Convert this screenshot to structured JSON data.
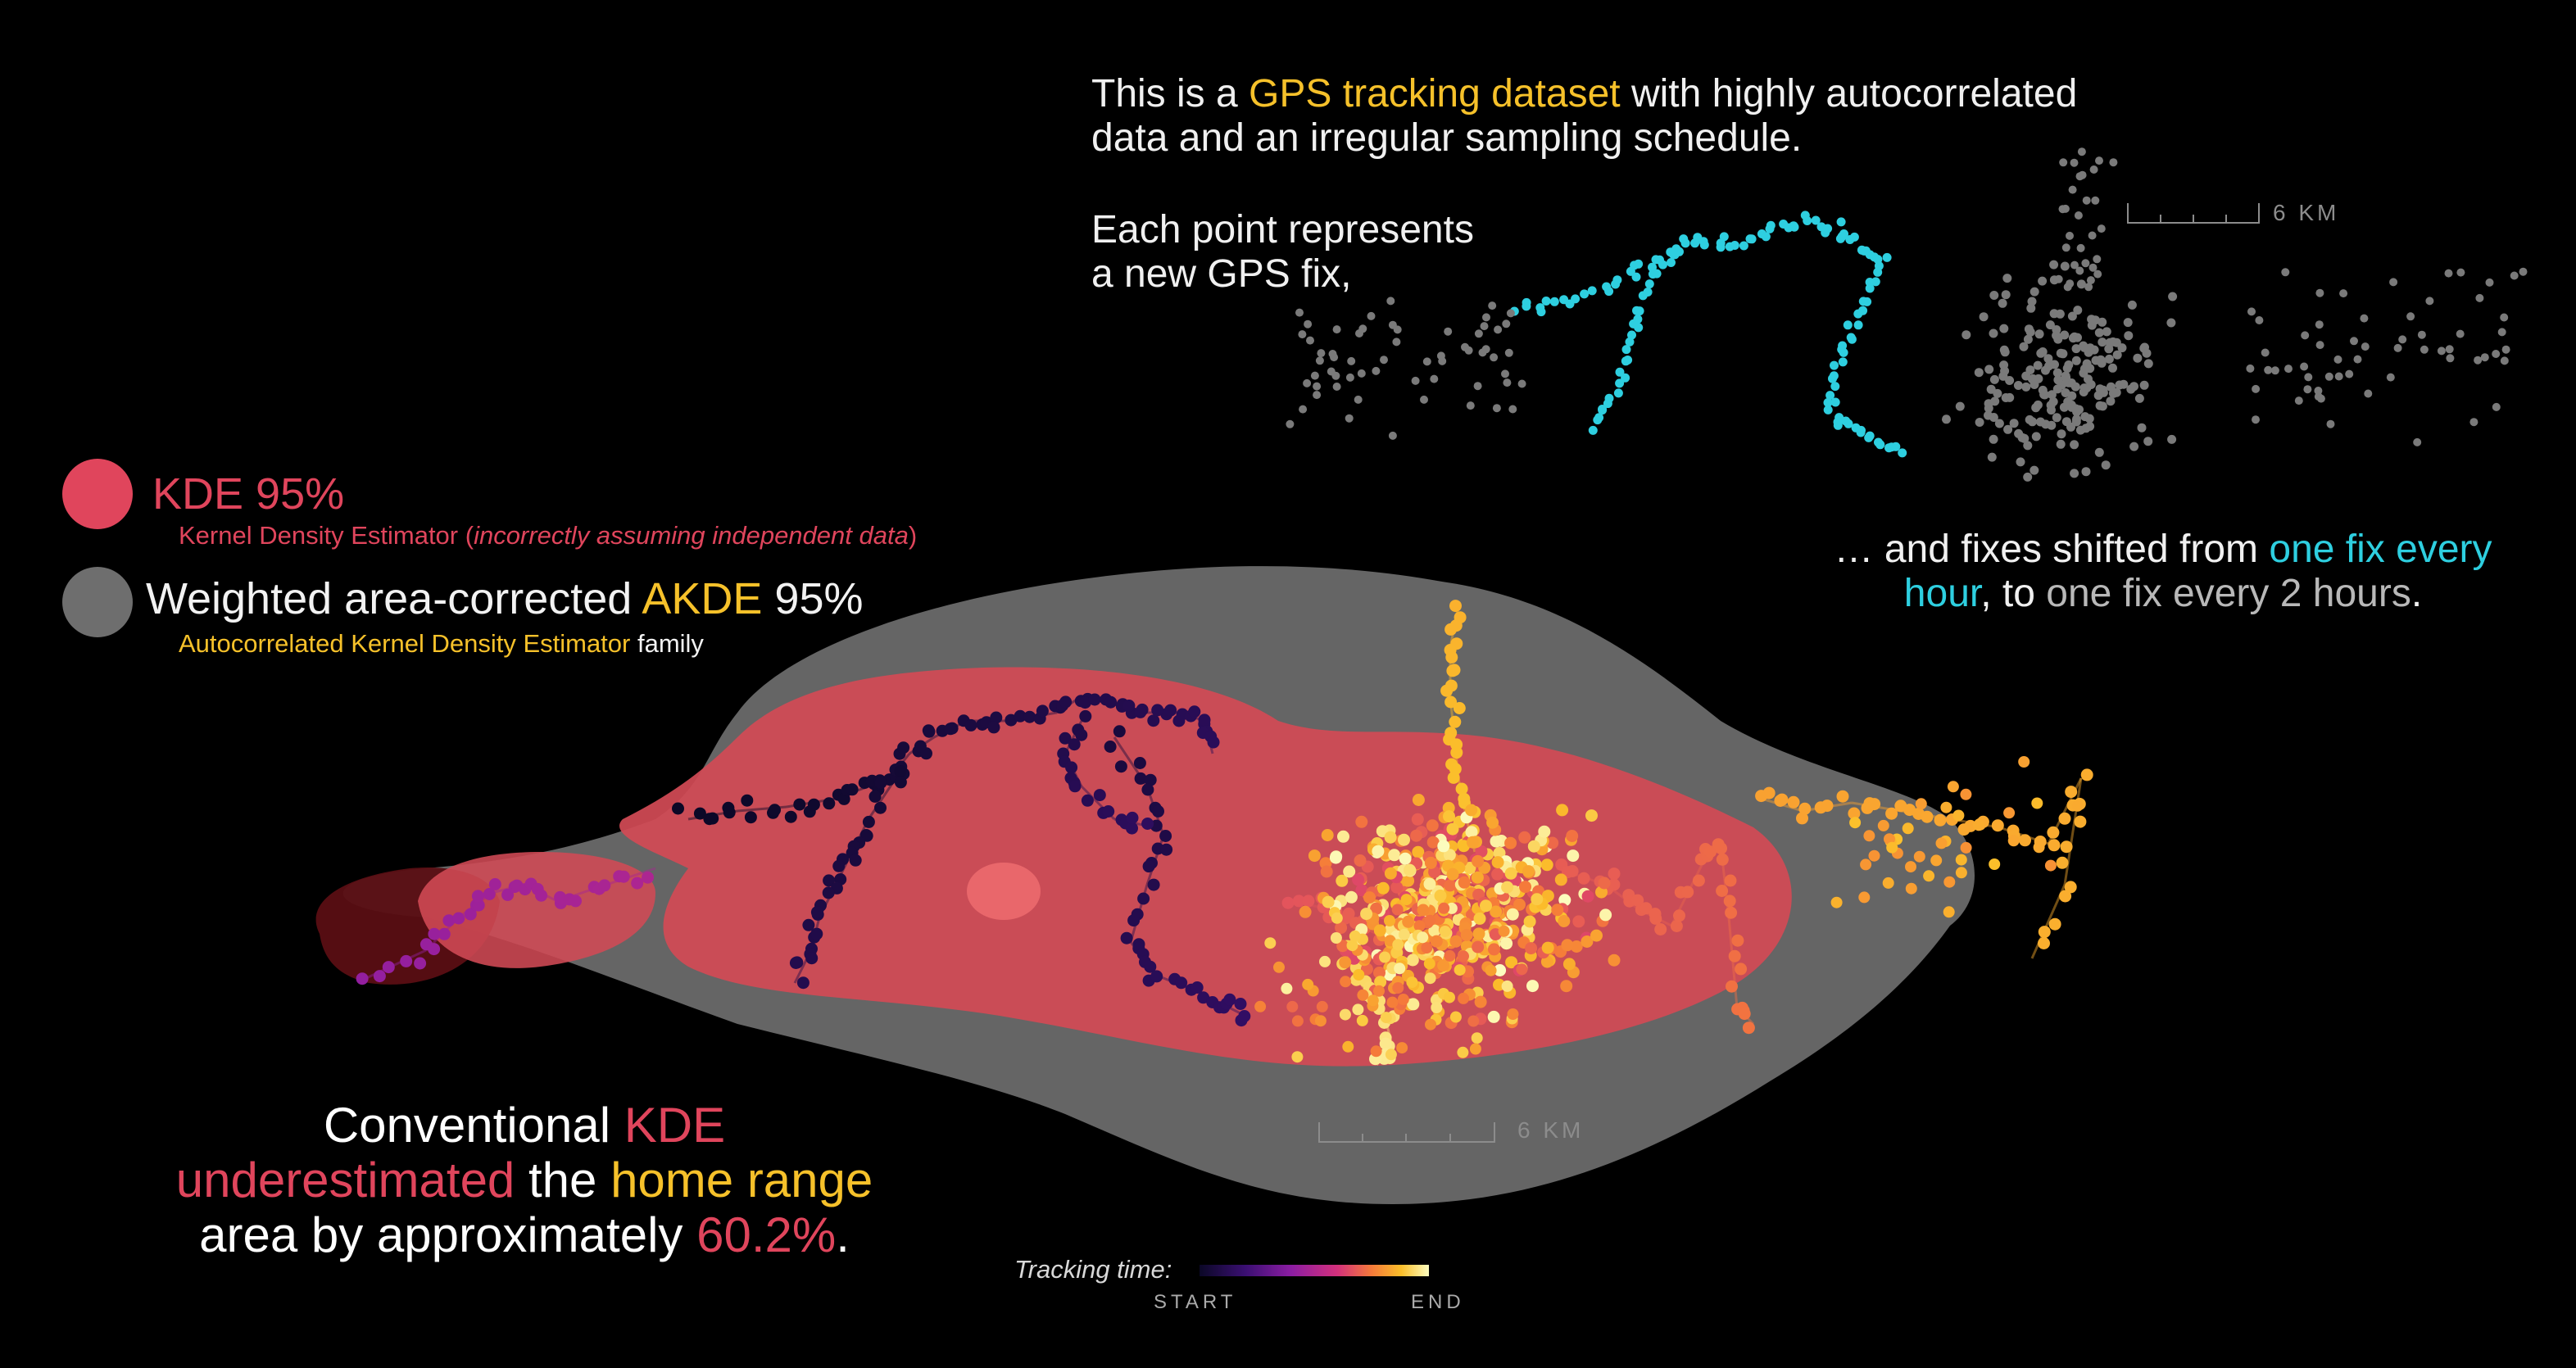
{
  "intro": {
    "line1_pre": "This is a ",
    "line1_hl": "GPS tracking dataset",
    "line1_post": " with highly autocorrelated",
    "line2": "data and an irregular sampling schedule.",
    "line3": "Each point represents",
    "line4": "a new GPS fix,"
  },
  "shift_note": {
    "pre": "… and fixes shifted from ",
    "hl_cyan": "one fix every hour",
    "mid": ", to ",
    "hl_grey": "one fix every 2 hours",
    "post": "."
  },
  "legend": {
    "kde": {
      "title": "KDE 95%",
      "sub_pre": "Kernel Density Estimator (",
      "sub_italic": "incorrectly assuming independent data",
      "sub_post": ")",
      "color": "#e0455c"
    },
    "akde": {
      "title_pre": "Weighted area-corrected ",
      "title_hl": "AKDE",
      "title_post": " 95%",
      "sub_hl": "Autocorrelated Kernel Density Estimator",
      "sub_post": " family",
      "color": "#6e6e6e"
    }
  },
  "conclusion": {
    "l1_pre": "Conventional ",
    "l1_hl": "KDE",
    "l2_hl1": "underestimated",
    "l2_mid": " the ",
    "l2_hl2": "home range",
    "l3_pre": "area by approximately ",
    "l3_hl": "60.2%",
    "l3_post": "."
  },
  "scale_bars": {
    "inset": "6 KM",
    "main": "6 KM"
  },
  "tracking_time": {
    "label": "Tracking time:",
    "start": "START",
    "end": "END"
  },
  "colors": {
    "accent_yellow": "#f6c12a",
    "accent_red": "#e0455c",
    "accent_cyan": "#2ecfe0",
    "akde_fill": "#6e6e6e",
    "kde_fill": "#d24a55",
    "gradient": [
      "#0b0826",
      "#3a0f72",
      "#8c1da3",
      "#d3307c",
      "#f57a3a",
      "#fbbf2a",
      "#fcfdbf"
    ]
  }
}
